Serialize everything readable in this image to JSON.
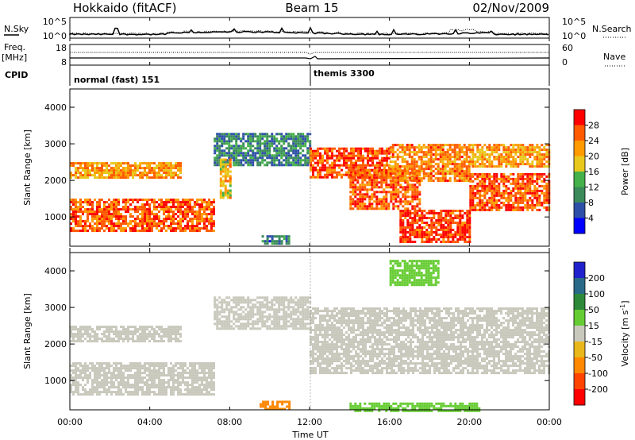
{
  "header": {
    "station": "Hokkaido (fitACF)",
    "beam": "Beam 15",
    "date": "02/Nov/2009"
  },
  "noise_panel": {
    "left_label": "N.Sky",
    "right_label": "N.Search",
    "left_ticks": [
      "10^5",
      "10^0"
    ],
    "right_ticks": [
      "10^5",
      "10^0"
    ]
  },
  "freq_panel": {
    "left_label_1": "Freq.",
    "left_label_2": "[MHz]",
    "right_label": "Nave",
    "left_ticks": [
      "18",
      "8"
    ],
    "right_ticks": [
      "60",
      "0"
    ]
  },
  "cpid_panel": {
    "label": "CPID",
    "entries": [
      {
        "start_hour": 0,
        "text": "normal (fast) 151"
      },
      {
        "start_hour": 12,
        "text": "themis 3300"
      }
    ]
  },
  "axes": {
    "ylabel": "Slant Range [km]",
    "xlabel": "Time UT",
    "y_ticks": [
      "1000",
      "2000",
      "3000",
      "4000"
    ],
    "x_ticks": [
      "00:00",
      "04:00",
      "08:00",
      "12:00",
      "16:00",
      "20:00",
      "00:00"
    ]
  },
  "power_colorbar": {
    "label": "Power [dB]",
    "ticks": [
      "4",
      "8",
      "12",
      "16",
      "20",
      "24",
      "28"
    ],
    "colors": [
      "#0000ff",
      "#2e4fa8",
      "#3a8a5a",
      "#44b14a",
      "#e8c81c",
      "#ff9a00",
      "#ff5a00",
      "#ff0000"
    ]
  },
  "velocity_colorbar": {
    "label": "Velocity [m s",
    "label_sup": "-1",
    "label_end": "]",
    "ticks": [
      "200",
      "100",
      "50",
      "15",
      "-15",
      "-50",
      "-100",
      "-200"
    ],
    "colors": [
      "#2222cc",
      "#2a6a88",
      "#2e8a3a",
      "#66cc33",
      "#c8c8bc",
      "#e8b81a",
      "#ff8800",
      "#ff4400",
      "#ff0000"
    ]
  },
  "chart_data": [
    {
      "type": "heatmap",
      "title": "Power",
      "xlabel": "Time UT",
      "ylabel": "Slant Range [km]",
      "xlim": [
        "00:00",
        "24:00"
      ],
      "ylim": [
        200,
        4500
      ],
      "regions": [
        {
          "t_start": 0.0,
          "t_end": 7.2,
          "r_start": 650,
          "r_end": 1500,
          "dB": 26
        },
        {
          "t_start": 0.0,
          "t_end": 5.5,
          "r_start": 2050,
          "r_end": 2500,
          "dB": 22
        },
        {
          "t_start": 7.2,
          "t_end": 12.0,
          "r_start": 2400,
          "r_end": 3300,
          "dB": 10
        },
        {
          "t_start": 7.5,
          "t_end": 8.0,
          "r_start": 1500,
          "r_end": 2600,
          "dB": 20
        },
        {
          "t_start": 9.6,
          "t_end": 11.0,
          "r_start": 300,
          "r_end": 500,
          "dB": 8
        },
        {
          "t_start": 12.0,
          "t_end": 16.0,
          "r_start": 2100,
          "r_end": 2900,
          "dB": 27
        },
        {
          "t_start": 14.0,
          "t_end": 17.5,
          "r_start": 1200,
          "r_end": 2300,
          "dB": 26
        },
        {
          "t_start": 16.5,
          "t_end": 20.0,
          "r_start": 300,
          "r_end": 1200,
          "dB": 28
        },
        {
          "t_start": 16.0,
          "t_end": 20.0,
          "r_start": 2000,
          "r_end": 3000,
          "dB": 24
        },
        {
          "t_start": 20.0,
          "t_end": 24.0,
          "r_start": 1200,
          "r_end": 2200,
          "dB": 26
        },
        {
          "t_start": 20.0,
          "t_end": 24.0,
          "r_start": 2400,
          "r_end": 3000,
          "dB": 22
        }
      ]
    },
    {
      "type": "heatmap",
      "title": "Velocity",
      "xlabel": "Time UT",
      "ylabel": "Slant Range [km]",
      "xlim": [
        "00:00",
        "24:00"
      ],
      "ylim": [
        200,
        4500
      ],
      "regions": [
        {
          "t_start": 0.0,
          "t_end": 7.2,
          "r_start": 650,
          "r_end": 1500,
          "v": 0
        },
        {
          "t_start": 0.0,
          "t_end": 5.5,
          "r_start": 2050,
          "r_end": 2500,
          "v": 0
        },
        {
          "t_start": 7.2,
          "t_end": 12.0,
          "r_start": 2400,
          "r_end": 3300,
          "v": 0
        },
        {
          "t_start": 12.0,
          "t_end": 24.0,
          "r_start": 1200,
          "r_end": 3000,
          "v": 0
        },
        {
          "t_start": 9.5,
          "t_end": 11.0,
          "r_start": 250,
          "r_end": 450,
          "v": -80
        },
        {
          "t_start": 14.0,
          "t_end": 20.5,
          "r_start": 200,
          "r_end": 400,
          "v": 40
        },
        {
          "t_start": 16.0,
          "t_end": 18.5,
          "r_start": 3600,
          "r_end": 4300,
          "v": 30
        }
      ]
    }
  ]
}
